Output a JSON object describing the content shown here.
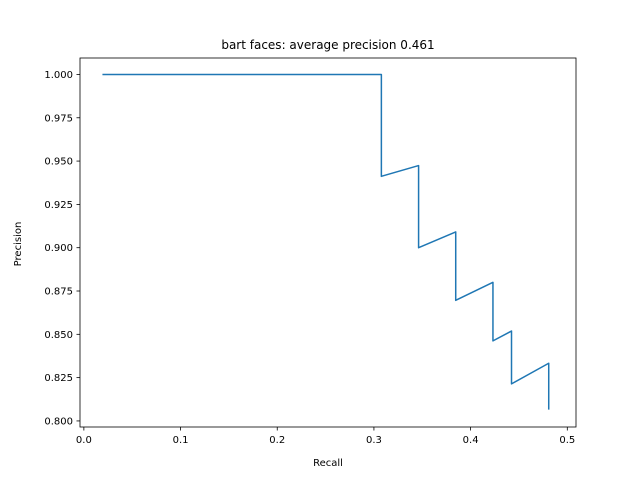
{
  "chart_data": {
    "type": "line",
    "title": "bart faces: average precision 0.461",
    "xlabel": "Recall",
    "ylabel": "Precision",
    "xlim": [
      -0.004,
      0.509
    ],
    "ylim": [
      0.7965,
      1.0095
    ],
    "xticks": [
      0.0,
      0.1,
      0.2,
      0.3,
      0.4,
      0.5
    ],
    "xtick_labels": [
      "0.0",
      "0.1",
      "0.2",
      "0.3",
      "0.4",
      "0.5"
    ],
    "yticks": [
      0.8,
      0.825,
      0.85,
      0.875,
      0.9,
      0.925,
      0.95,
      0.975,
      1.0
    ],
    "ytick_labels": [
      "0.800",
      "0.825",
      "0.850",
      "0.875",
      "0.900",
      "0.925",
      "0.950",
      "0.975",
      "1.000"
    ],
    "grid": false,
    "series": [
      {
        "color": "#1f77b4",
        "x": [
          0.0192,
          0.3077,
          0.3077,
          0.3462,
          0.3462,
          0.3846,
          0.3846,
          0.4231,
          0.4231,
          0.4423,
          0.4423,
          0.4808,
          0.4808
        ],
        "y": [
          1.0,
          1.0,
          0.9412,
          0.9474,
          0.9,
          0.9091,
          0.8696,
          0.88,
          0.8462,
          0.8519,
          0.8214,
          0.8333,
          0.8065
        ]
      }
    ]
  }
}
